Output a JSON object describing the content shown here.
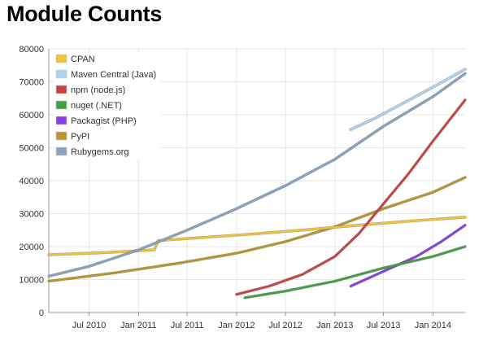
{
  "page": {
    "title": "Module Counts"
  },
  "chart_data": {
    "type": "line",
    "title": "",
    "xlabel": "",
    "ylabel": "",
    "x_range": [
      "2010-02-01",
      "2014-05-01"
    ],
    "ylim": [
      0,
      80000
    ],
    "y_ticks": [
      0,
      10000,
      20000,
      30000,
      40000,
      50000,
      60000,
      70000,
      80000
    ],
    "x_ticks": [
      {
        "label": "Jul 2010",
        "date": "2010-07-01"
      },
      {
        "label": "Jan 2011",
        "date": "2011-01-01"
      },
      {
        "label": "Jul 2011",
        "date": "2011-07-01"
      },
      {
        "label": "Jan 2012",
        "date": "2012-01-01"
      },
      {
        "label": "Jul 2012",
        "date": "2012-07-01"
      },
      {
        "label": "Jan 2013",
        "date": "2013-01-01"
      },
      {
        "label": "Jul 2013",
        "date": "2013-07-01"
      },
      {
        "label": "Jan 2014",
        "date": "2014-01-01"
      }
    ],
    "grid": true,
    "legend_position": "top-left",
    "series": [
      {
        "name": "CPAN",
        "color": "#f0c239",
        "points": [
          [
            "2010-02-01",
            17500
          ],
          [
            "2010-09-01",
            18200
          ],
          [
            "2011-03-01",
            19000
          ],
          [
            "2011-03-15",
            21800
          ],
          [
            "2011-09-01",
            22800
          ],
          [
            "2012-03-01",
            23800
          ],
          [
            "2012-09-01",
            25000
          ],
          [
            "2013-03-01",
            26300
          ],
          [
            "2013-09-01",
            27500
          ],
          [
            "2014-03-01",
            28600
          ],
          [
            "2014-05-01",
            28900
          ]
        ]
      },
      {
        "name": "Maven Central (Java)",
        "color": "#aed2ee",
        "points": [
          [
            "2013-03-01",
            55500
          ],
          [
            "2013-06-01",
            59000
          ],
          [
            "2013-09-01",
            63000
          ],
          [
            "2013-12-01",
            67000
          ],
          [
            "2014-03-01",
            71000
          ],
          [
            "2014-05-01",
            73800
          ]
        ]
      },
      {
        "name": "npm (node.js)",
        "color": "#c94343",
        "points": [
          [
            "2012-01-01",
            5500
          ],
          [
            "2012-05-01",
            8000
          ],
          [
            "2012-09-01",
            11500
          ],
          [
            "2013-01-01",
            17000
          ],
          [
            "2013-04-01",
            24000
          ],
          [
            "2013-07-01",
            33000
          ],
          [
            "2013-10-01",
            42000
          ],
          [
            "2014-01-01",
            52000
          ],
          [
            "2014-05-01",
            64500
          ]
        ]
      },
      {
        "name": "nuget (.NET)",
        "color": "#44a047",
        "points": [
          [
            "2012-02-01",
            4500
          ],
          [
            "2012-07-01",
            6500
          ],
          [
            "2013-01-01",
            9500
          ],
          [
            "2013-07-01",
            13500
          ],
          [
            "2014-01-01",
            17000
          ],
          [
            "2014-05-01",
            20000
          ]
        ]
      },
      {
        "name": "Packagist (PHP)",
        "color": "#8a3fe0",
        "points": [
          [
            "2013-03-01",
            8000
          ],
          [
            "2013-07-01",
            12500
          ],
          [
            "2013-11-01",
            17000
          ],
          [
            "2014-02-01",
            21500
          ],
          [
            "2014-05-01",
            26500
          ]
        ]
      },
      {
        "name": "PyPI",
        "color": "#b8962e",
        "points": [
          [
            "2010-02-01",
            9500
          ],
          [
            "2010-10-01",
            12000
          ],
          [
            "2011-06-01",
            15000
          ],
          [
            "2012-01-01",
            18000
          ],
          [
            "2012-07-01",
            21500
          ],
          [
            "2013-01-01",
            26000
          ],
          [
            "2013-07-01",
            31500
          ],
          [
            "2014-01-01",
            36500
          ],
          [
            "2014-05-01",
            41000
          ]
        ]
      },
      {
        "name": "Rubygems.org",
        "color": "#87a3bd",
        "points": [
          [
            "2010-02-01",
            11000
          ],
          [
            "2010-07-01",
            14000
          ],
          [
            "2011-01-01",
            19000
          ],
          [
            "2011-07-01",
            25000
          ],
          [
            "2012-01-01",
            31500
          ],
          [
            "2012-07-01",
            38500
          ],
          [
            "2013-01-01",
            46500
          ],
          [
            "2013-07-01",
            56500
          ],
          [
            "2014-01-01",
            65500
          ],
          [
            "2014-05-01",
            72500
          ]
        ]
      }
    ]
  }
}
